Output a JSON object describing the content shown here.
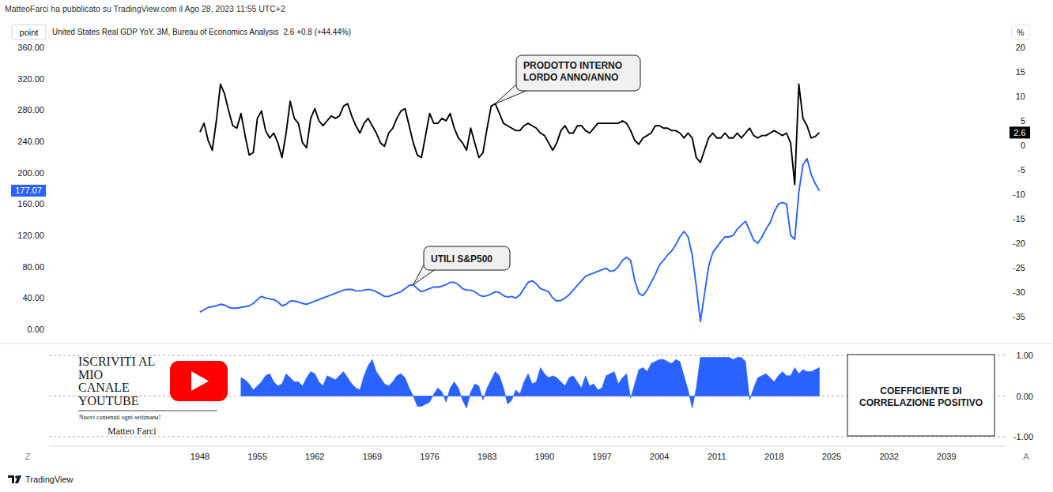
{
  "page": {
    "header": "MatteoFarci ha pubblicato su TradingView.com il Ago 28, 2023 11:55 UTC+2",
    "scale_button": "point",
    "percent_button": "%",
    "zoom_button": "Z",
    "auto_button": "A",
    "footer": "TradingView",
    "promo": {
      "lines": [
        "ISCRIVITI AL",
        "MIO",
        "CANALE",
        "YOUTUBE"
      ],
      "tagline": "Nuovi contenuti ogni settimana!",
      "author": "Matteo Farci"
    }
  },
  "chart_data": [
    {
      "type": "line",
      "legend_values": "2.6 +0.8 (+44.44%)",
      "x": [
        1948,
        1948.5,
        1949,
        1949.5,
        1950,
        1950.5,
        1951,
        1951.5,
        1952,
        1952.5,
        1953,
        1953.5,
        1954,
        1954.5,
        1955,
        1955.5,
        1956,
        1956.5,
        1957,
        1957.5,
        1958,
        1958.5,
        1959,
        1959.5,
        1960,
        1960.5,
        1961,
        1961.5,
        1962,
        1962.5,
        1963,
        1963.5,
        1964,
        1964.5,
        1965,
        1965.5,
        1966,
        1966.5,
        1967,
        1967.5,
        1968,
        1968.5,
        1969,
        1969.5,
        1970,
        1970.5,
        1971,
        1971.5,
        1972,
        1972.5,
        1973,
        1973.5,
        1974,
        1974.5,
        1975,
        1975.5,
        1976,
        1976.5,
        1977,
        1977.5,
        1978,
        1978.5,
        1979,
        1979.5,
        1980,
        1980.5,
        1981,
        1981.5,
        1982,
        1982.5,
        1983,
        1983.5,
        1984,
        1984.5,
        1985,
        1985.5,
        1986,
        1986.5,
        1987,
        1987.5,
        1988,
        1988.5,
        1989,
        1989.5,
        1990,
        1990.5,
        1991,
        1991.5,
        1992,
        1992.5,
        1993,
        1993.5,
        1994,
        1994.5,
        1995,
        1995.5,
        1996,
        1996.5,
        1997,
        1997.5,
        1998,
        1998.5,
        1999,
        1999.5,
        2000,
        2000.5,
        2001,
        2001.5,
        2002,
        2002.5,
        2003,
        2003.5,
        2004,
        2004.5,
        2005,
        2005.5,
        2006,
        2006.5,
        2007,
        2007.5,
        2008,
        2008.5,
        2009,
        2009.5,
        2010,
        2010.5,
        2011,
        2011.5,
        2012,
        2012.5,
        2013,
        2013.5,
        2014,
        2014.5,
        2015,
        2015.5,
        2016,
        2016.5,
        2017,
        2017.5,
        2018,
        2018.5,
        2019,
        2019.5,
        2020,
        2020.5,
        2021,
        2021.5,
        2022,
        2022.5,
        2023,
        2023.5
      ],
      "xlim": [
        1929.6,
        2046.2
      ],
      "ylim": [
        0,
        360
      ],
      "yticks": [
        {
          "value": 0,
          "label": "0.00"
        },
        {
          "value": 40,
          "label": "40.00"
        },
        {
          "value": 80,
          "label": "80.00"
        },
        {
          "value": 120,
          "label": "120.00"
        },
        {
          "value": 160,
          "label": "160.00"
        },
        {
          "value": 200,
          "label": "200.00"
        },
        {
          "value": 240,
          "label": "240.00"
        },
        {
          "value": 280,
          "label": "280.00"
        },
        {
          "value": 320,
          "label": "320.00"
        },
        {
          "value": 360,
          "label": "360.00"
        }
      ],
      "y2lim": [
        -35,
        20
      ],
      "y2ticks": [
        -35,
        -30,
        -25,
        -20,
        -15,
        -10,
        -5,
        0,
        5,
        10,
        15,
        20
      ],
      "grid": false,
      "series": [
        {
          "name": "United States Real GDP YoY, 3M, Bureau of Economics Analysis",
          "color": "#000000",
          "axis": "y2",
          "values": [
            2.7,
            4.5,
            1.0,
            -1.0,
            5.0,
            12.5,
            10.5,
            7.0,
            4.0,
            3.5,
            6.5,
            2.0,
            -2.0,
            -1.5,
            5.5,
            7.0,
            3.0,
            1.5,
            2.5,
            0.5,
            -2.5,
            2.5,
            9.0,
            5.5,
            4.5,
            0.5,
            -0.5,
            5.5,
            7.5,
            5.0,
            4.0,
            5.0,
            6.0,
            5.5,
            6.0,
            8.0,
            8.5,
            6.0,
            4.0,
            2.5,
            4.5,
            5.5,
            4.0,
            2.5,
            0.5,
            -0.2,
            2.5,
            3.5,
            5.5,
            7.0,
            7.5,
            4.0,
            0.5,
            -2.0,
            -2.5,
            2.0,
            6.5,
            4.5,
            4.5,
            5.5,
            5.0,
            6.5,
            3.5,
            1.5,
            0.5,
            -1.0,
            3.5,
            0.5,
            -2.5,
            -1.5,
            3.5,
            8.0,
            8.5,
            6.5,
            4.5,
            4.0,
            3.5,
            3.0,
            3.0,
            4.0,
            4.5,
            4.0,
            3.5,
            2.5,
            2.0,
            0.5,
            -1.0,
            0.5,
            3.0,
            4.0,
            2.5,
            2.5,
            4.0,
            4.0,
            3.0,
            2.5,
            3.5,
            4.5,
            4.5,
            4.5,
            4.5,
            4.5,
            4.5,
            5.0,
            4.5,
            3.0,
            1.0,
            0.2,
            1.5,
            2.0,
            2.5,
            4.0,
            4.0,
            3.5,
            3.5,
            3.0,
            3.0,
            2.5,
            1.5,
            2.5,
            1.5,
            -2.5,
            -3.5,
            -1.0,
            1.5,
            2.5,
            1.5,
            1.5,
            2.5,
            1.5,
            1.5,
            2.5,
            1.5,
            2.5,
            3.5,
            2.0,
            1.5,
            2.0,
            2.0,
            2.5,
            3.0,
            2.5,
            2.0,
            2.5,
            0.5,
            -8.0,
            12.5,
            5.5,
            4.0,
            1.5,
            1.8,
            2.6
          ]
        },
        {
          "color": "#2962ff",
          "axis": "y",
          "values": [
            22,
            25,
            28,
            29,
            30,
            32,
            31,
            28,
            27,
            27,
            28,
            29,
            30,
            33,
            38,
            42,
            40,
            39,
            38,
            35,
            30,
            32,
            36,
            36,
            35,
            33,
            32,
            34,
            36,
            38,
            40,
            42,
            44,
            46,
            48,
            50,
            51,
            51,
            49,
            49,
            50,
            51,
            50,
            48,
            45,
            42,
            42,
            44,
            46,
            48,
            52,
            56,
            57,
            52,
            48,
            50,
            52,
            54,
            54,
            55,
            57,
            60,
            60,
            57,
            52,
            50,
            50,
            48,
            44,
            42,
            43,
            45,
            48,
            47,
            43,
            41,
            42,
            40,
            44,
            52,
            60,
            62,
            58,
            52,
            50,
            48,
            40,
            36,
            37,
            40,
            44,
            50,
            56,
            62,
            68,
            70,
            72,
            74,
            76,
            78,
            74,
            75,
            80,
            88,
            92,
            88,
            62,
            46,
            43,
            50,
            60,
            70,
            82,
            88,
            95,
            100,
            108,
            118,
            125,
            118,
            95,
            55,
            10,
            45,
            80,
            98,
            105,
            112,
            118,
            118,
            120,
            128,
            133,
            138,
            126,
            114,
            110,
            118,
            128,
            136,
            150,
            160,
            162,
            160,
            120,
            115,
            175,
            210,
            218,
            198,
            186,
            177.07
          ]
        }
      ],
      "price_labels": [
        {
          "value": 177.07,
          "axis": "y",
          "color": "#2962ff"
        },
        {
          "value": 2.6,
          "axis": "y2",
          "color": "#000000"
        }
      ],
      "annotations": [
        {
          "text": [
            "PRODOTTO INTERNO",
            "LORDO ANNO/ANNO"
          ],
          "x": 1984,
          "y": 8.5,
          "axis": "y2"
        },
        {
          "text": [
            "UTILI S&P500"
          ],
          "x": 1974,
          "y": 57,
          "axis": "y"
        }
      ]
    },
    {
      "type": "area",
      "x": [
        1953,
        1953.5,
        1954,
        1954.5,
        1955,
        1955.5,
        1956,
        1956.5,
        1957,
        1957.5,
        1958,
        1958.5,
        1959,
        1959.5,
        1960,
        1960.5,
        1961,
        1961.5,
        1962,
        1962.5,
        1963,
        1963.5,
        1964,
        1964.5,
        1965,
        1965.5,
        1966,
        1966.5,
        1967,
        1967.5,
        1968,
        1968.5,
        1969,
        1969.5,
        1970,
        1970.5,
        1971,
        1971.5,
        1972,
        1972.5,
        1973,
        1973.5,
        1974,
        1974.5,
        1975,
        1975.5,
        1976,
        1976.5,
        1977,
        1977.5,
        1978,
        1978.5,
        1979,
        1979.5,
        1980,
        1980.5,
        1981,
        1981.5,
        1982,
        1982.5,
        1983,
        1983.5,
        1984,
        1984.5,
        1985,
        1985.5,
        1986,
        1986.5,
        1987,
        1987.5,
        1988,
        1988.5,
        1989,
        1989.5,
        1990,
        1990.5,
        1991,
        1991.5,
        1992,
        1992.5,
        1993,
        1993.5,
        1994,
        1994.5,
        1995,
        1995.5,
        1996,
        1996.5,
        1997,
        1997.5,
        1998,
        1998.5,
        1999,
        1999.5,
        2000,
        2000.5,
        2001,
        2001.5,
        2002,
        2002.5,
        2003,
        2003.5,
        2004,
        2004.5,
        2005,
        2005.5,
        2006,
        2006.5,
        2007,
        2007.5,
        2008,
        2008.5,
        2009,
        2009.5,
        2010,
        2010.5,
        2011,
        2011.5,
        2012,
        2012.5,
        2013,
        2013.5,
        2014,
        2014.5,
        2015,
        2015.5,
        2016,
        2016.5,
        2017,
        2017.5,
        2018,
        2018.5,
        2019,
        2019.5,
        2020,
        2020.5,
        2021,
        2021.5,
        2022,
        2022.5,
        2023,
        2023.5
      ],
      "xlim": [
        1929.6,
        2046.2
      ],
      "xticks": [
        1948,
        1955,
        1962,
        1969,
        1976,
        1983,
        1990,
        1997,
        2004,
        2011,
        2018,
        2025,
        2032,
        2039
      ],
      "ylim": [
        -1,
        1
      ],
      "yticks": [
        {
          "value": -1,
          "label": "-1.00"
        },
        {
          "value": 0,
          "label": "0.00"
        },
        {
          "value": 1,
          "label": "1.00"
        }
      ],
      "grid": true,
      "series": [
        {
          "color": "#2962ff",
          "values": [
            0.45,
            0.4,
            0.3,
            0.15,
            0.25,
            0.35,
            0.5,
            0.55,
            0.35,
            0.25,
            0.3,
            0.55,
            0.45,
            0.35,
            0.35,
            0.25,
            0.45,
            0.6,
            0.55,
            0.35,
            0.25,
            0.5,
            0.45,
            0.4,
            0.5,
            0.6,
            0.45,
            0.3,
            0.2,
            0.15,
            0.5,
            0.75,
            0.9,
            0.6,
            0.45,
            0.3,
            0.25,
            0.35,
            0.5,
            0.55,
            0.45,
            0.2,
            0.0,
            -0.25,
            -0.25,
            -0.2,
            -0.15,
            0.05,
            0.2,
            0.1,
            -0.15,
            0.2,
            0.35,
            0.2,
            -0.1,
            -0.3,
            0.1,
            0.3,
            0.25,
            -0.1,
            0.2,
            0.4,
            0.6,
            0.5,
            0.2,
            -0.2,
            -0.1,
            0.15,
            0.05,
            0.35,
            0.55,
            0.3,
            0.35,
            0.7,
            0.55,
            0.45,
            0.5,
            0.45,
            0.35,
            0.25,
            0.45,
            0.5,
            0.35,
            0.2,
            0.5,
            0.25,
            0.3,
            0.15,
            0.2,
            0.5,
            0.55,
            0.6,
            0.3,
            0.45,
            0.55,
            -0.05,
            0.3,
            0.65,
            0.7,
            0.6,
            0.8,
            0.85,
            0.9,
            0.9,
            0.85,
            0.8,
            0.9,
            0.85,
            0.5,
            0.15,
            -0.3,
            0.2,
            0.95,
            0.95,
            0.95,
            0.95,
            0.95,
            0.95,
            0.95,
            0.95,
            0.9,
            0.95,
            0.95,
            0.85,
            -0.1,
            0.2,
            0.45,
            0.5,
            0.55,
            0.45,
            0.35,
            0.5,
            0.6,
            0.5,
            0.5,
            0.7,
            0.55,
            0.65,
            0.6,
            0.6,
            0.65,
            0.7
          ]
        }
      ],
      "annotations": [
        {
          "text": [
            "COEFFICIENTE DI",
            "CORRELAZIONE POSITIVO"
          ]
        }
      ]
    }
  ]
}
